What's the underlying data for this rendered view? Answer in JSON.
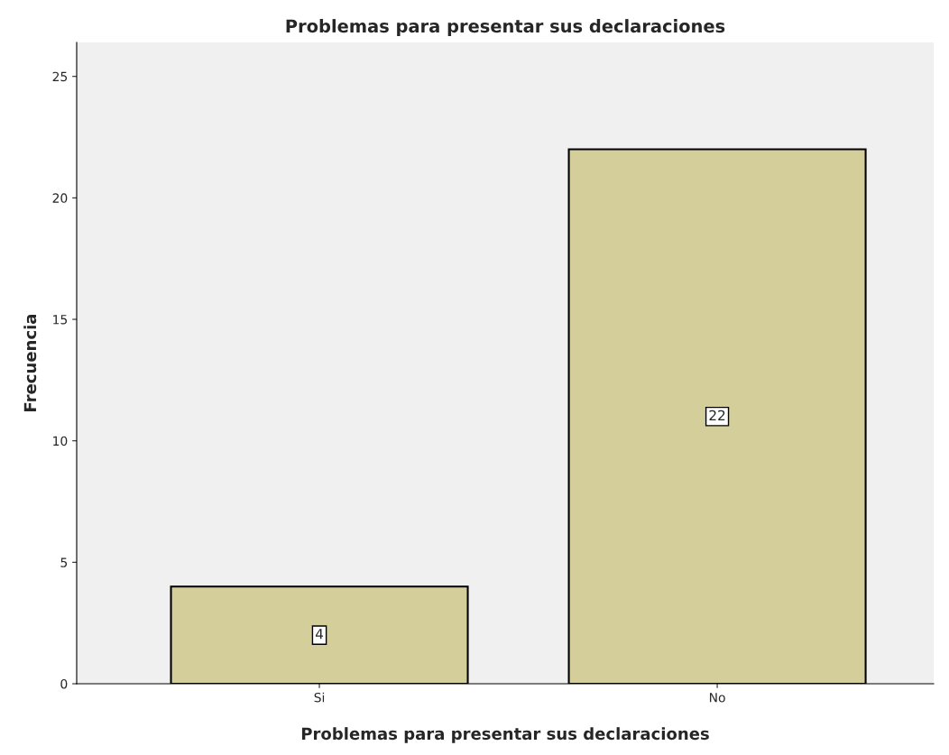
{
  "chart_data": {
    "type": "bar",
    "title": "Problemas para presentar sus declaraciones",
    "xlabel": "Problemas para presentar sus declaraciones",
    "ylabel": "Frecuencia",
    "categories": [
      "Si",
      "No"
    ],
    "values": [
      4,
      22
    ],
    "color": "#d4cf9a",
    "ylim": [
      0,
      26.4
    ],
    "yticks": [
      0,
      5,
      10,
      15,
      20,
      25
    ],
    "grid": false,
    "data_labels": true,
    "legend": false
  }
}
